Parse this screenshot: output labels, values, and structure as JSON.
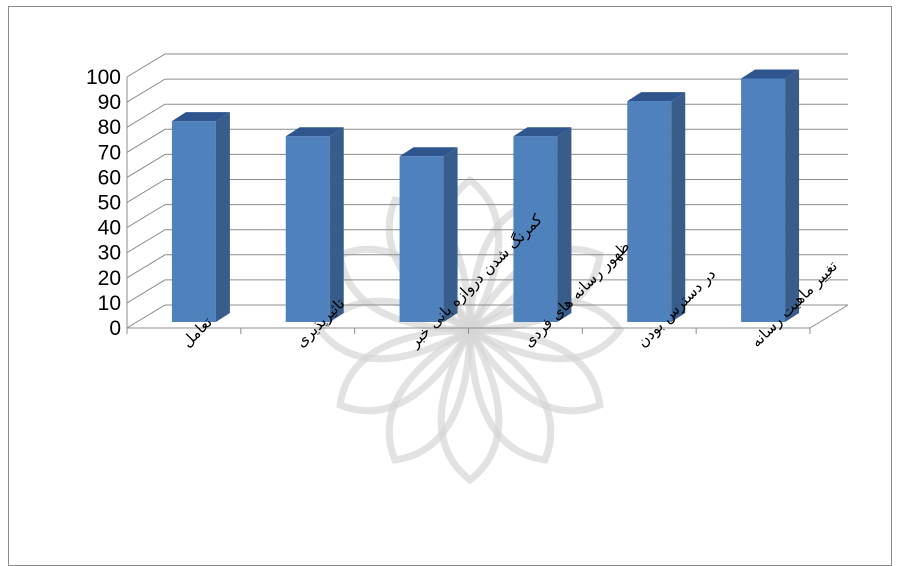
{
  "chart_data": {
    "type": "bar",
    "title": "",
    "xlabel": "",
    "ylabel": "",
    "ylim": [
      0,
      100
    ],
    "ytick_step": 10,
    "grid": true,
    "categories": [
      "تعامل",
      "تاثیرپذیری",
      "کمرنگ شدن دروازه بانی خبر",
      "ظهور رسانه های فردی",
      "در دسترس بودن",
      "تغییر ماهیت رسانه"
    ],
    "values": [
      84,
      78,
      70,
      78,
      92,
      101
    ],
    "colors": {
      "bar_front": "#4f81bd",
      "bar_side": "#385d8a",
      "bar_top": "#2f558f",
      "grid": "#8c8c8c"
    }
  }
}
